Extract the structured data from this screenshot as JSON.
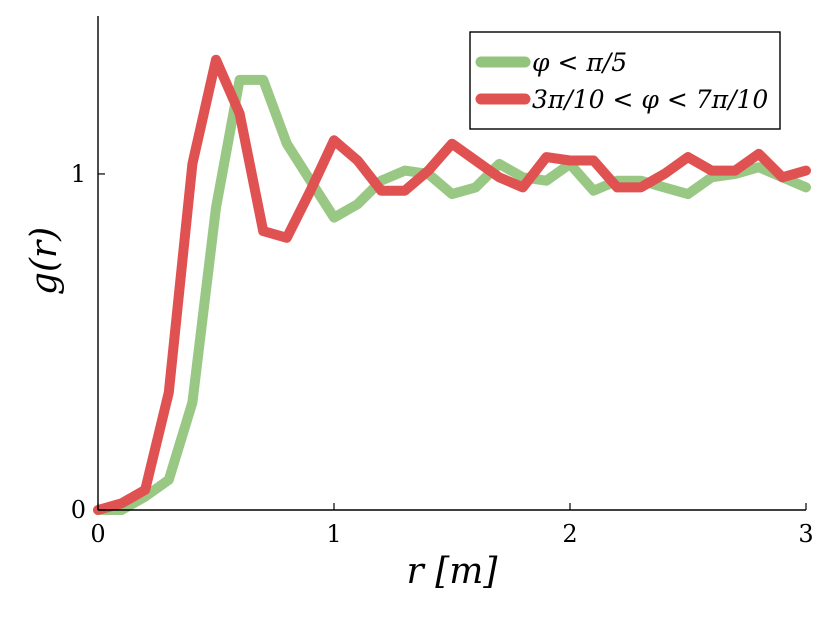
{
  "chart_data": {
    "type": "line",
    "title": "",
    "xlabel": "r [m]",
    "ylabel": "g(r)",
    "xlim": [
      0,
      3
    ],
    "ylim": [
      0,
      1.47
    ],
    "xticks": [
      0,
      1,
      2,
      3
    ],
    "xtick_labels": [
      "0",
      "1",
      "2",
      "3"
    ],
    "yticks": [
      0,
      1
    ],
    "ytick_labels": [
      "0",
      "1"
    ],
    "grid": false,
    "legend_position": "top-right",
    "series": [
      {
        "name": "φ < π/5",
        "color": "#93c47d",
        "x": [
          0,
          0.1,
          0.2,
          0.3,
          0.4,
          0.5,
          0.6,
          0.7,
          0.8,
          0.9,
          1.0,
          1.1,
          1.2,
          1.3,
          1.4,
          1.5,
          1.6,
          1.7,
          1.8,
          1.9,
          2.0,
          2.1,
          2.2,
          2.3,
          2.4,
          2.5,
          2.6,
          2.7,
          2.8,
          2.9,
          3.0
        ],
        "y": [
          0,
          0,
          0.04,
          0.09,
          0.32,
          0.9,
          1.28,
          1.28,
          1.09,
          0.98,
          0.87,
          0.91,
          0.98,
          1.01,
          1.0,
          0.94,
          0.96,
          1.03,
          0.99,
          0.98,
          1.03,
          0.95,
          0.98,
          0.98,
          0.96,
          0.94,
          0.99,
          1.0,
          1.02,
          0.99,
          0.96
        ]
      },
      {
        "name": "3π/10 < φ < 7π/10",
        "color": "#e05252",
        "x": [
          0,
          0.1,
          0.2,
          0.3,
          0.4,
          0.5,
          0.6,
          0.7,
          0.8,
          0.9,
          1.0,
          1.1,
          1.2,
          1.3,
          1.4,
          1.5,
          1.6,
          1.7,
          1.8,
          1.9,
          2.0,
          2.1,
          2.2,
          2.3,
          2.4,
          2.5,
          2.6,
          2.7,
          2.8,
          2.9,
          3.0
        ],
        "y": [
          0,
          0.02,
          0.06,
          0.35,
          1.03,
          1.34,
          1.18,
          0.83,
          0.81,
          0.95,
          1.1,
          1.04,
          0.95,
          0.95,
          1.01,
          1.09,
          1.04,
          0.99,
          0.96,
          1.05,
          1.04,
          1.04,
          0.96,
          0.96,
          1.0,
          1.05,
          1.01,
          1.01,
          1.06,
          0.99,
          1.01
        ]
      }
    ]
  }
}
